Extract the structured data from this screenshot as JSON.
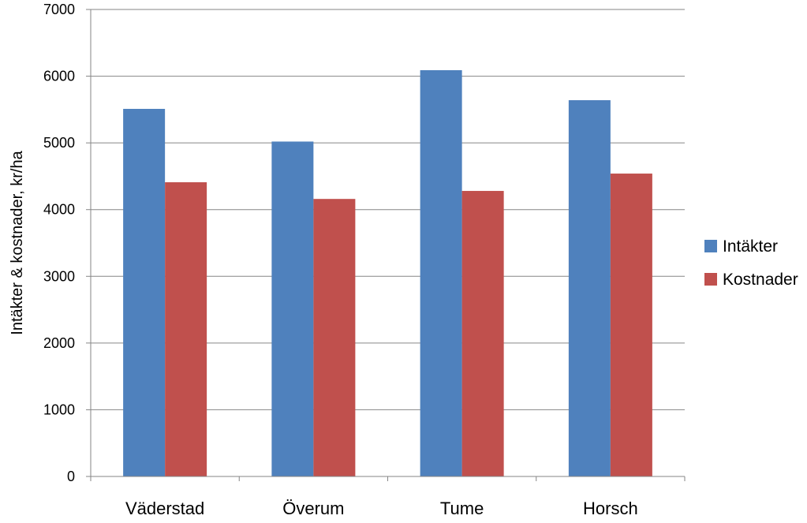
{
  "chart_data": {
    "type": "bar",
    "categories": [
      "Väderstad",
      "Överum",
      "Tume",
      "Horsch"
    ],
    "series": [
      {
        "name": "Intäkter",
        "color": "#4F81BD",
        "values": [
          5510,
          5020,
          6090,
          5640
        ]
      },
      {
        "name": "Kostnader",
        "color": "#C0504D",
        "values": [
          4410,
          4160,
          4280,
          4540
        ]
      }
    ],
    "ylabel": "Intäkter & kostnader, kr/ha",
    "ylim": [
      0,
      7000
    ],
    "yticks": [
      "0",
      "1000",
      "2000",
      "3000",
      "4000",
      "5000",
      "6000",
      "7000"
    ],
    "grid": true,
    "legend_position": "right"
  }
}
